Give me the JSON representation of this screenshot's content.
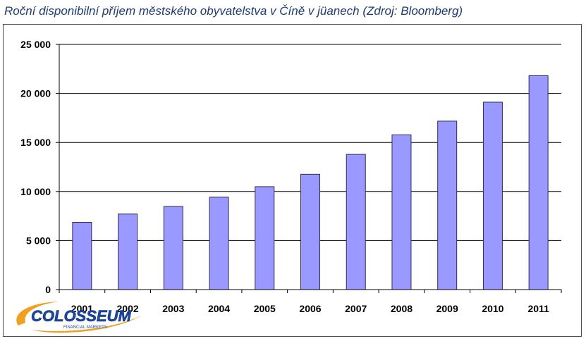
{
  "title": "Roční disponibilní příjem městského obyvatelstva v Číně v jüanech  (Zdroj: Bloomberg)",
  "logo": {
    "name": "COLOSSEUM",
    "tagline": "FINANCIAL MARKETS"
  },
  "colors": {
    "bar": "#9999ff",
    "bar_stroke": "#2b2b55",
    "grid": "#000000",
    "title": "#1f3a72"
  },
  "chart_data": {
    "type": "bar",
    "title": "Roční disponibilní příjem městského obyvatelstva v Číně v jüanech  (Zdroj: Bloomberg)",
    "xlabel": "",
    "ylabel": "",
    "categories": [
      "2001",
      "2002",
      "2003",
      "2004",
      "2005",
      "2006",
      "2007",
      "2008",
      "2009",
      "2010",
      "2011"
    ],
    "values": [
      6860,
      7703,
      8472,
      9422,
      10493,
      11759,
      13786,
      15781,
      17175,
      19109,
      21810
    ],
    "ylim": [
      0,
      25000
    ],
    "yticks": [
      0,
      5000,
      10000,
      15000,
      20000,
      25000
    ],
    "ytick_labels": [
      "0",
      "5 000",
      "10 000",
      "15 000",
      "20 000",
      "25 000"
    ],
    "grid": true,
    "legend": "none"
  }
}
